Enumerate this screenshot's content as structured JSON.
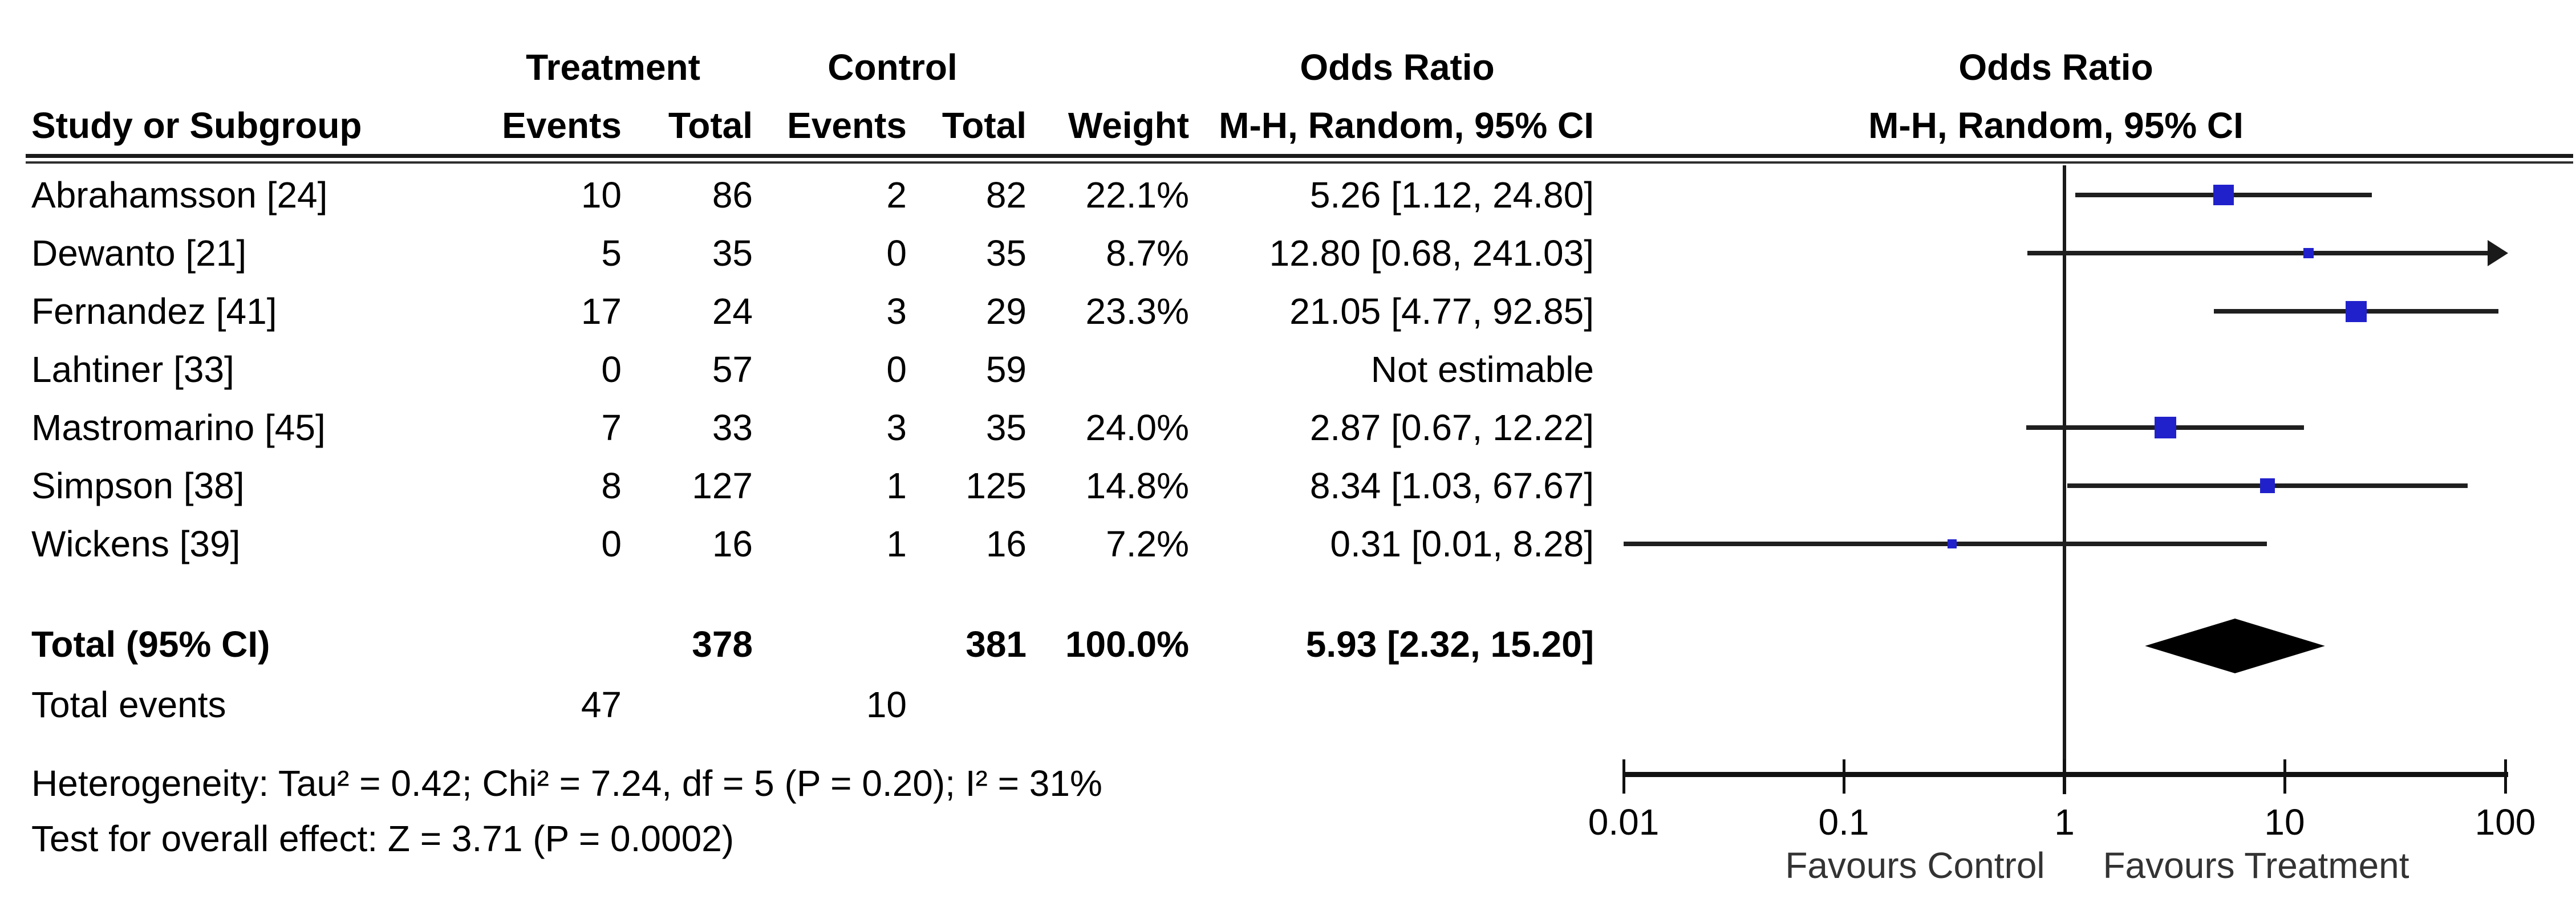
{
  "header": {
    "group1": "Treatment",
    "group2": "Control",
    "or_col_line1": "Odds Ratio",
    "or_col_line2": "M-H, Random, 95% CI",
    "plot_line1": "Odds Ratio",
    "plot_line2": "M-H, Random, 95% CI",
    "study": "Study or Subgroup",
    "events": "Events",
    "total": "Total",
    "weight": "Weight"
  },
  "table": {
    "rows": [
      {
        "study": "Abrahamsson [24]",
        "t_events": "10",
        "t_total": "86",
        "c_events": "2",
        "c_total": "82",
        "weight": "22.1%",
        "or_text": "5.26 [1.12, 24.80]"
      },
      {
        "study": "Dewanto [21]",
        "t_events": "5",
        "t_total": "35",
        "c_events": "0",
        "c_total": "35",
        "weight": "8.7%",
        "or_text": "12.80 [0.68, 241.03]"
      },
      {
        "study": "Fernandez [41]",
        "t_events": "17",
        "t_total": "24",
        "c_events": "3",
        "c_total": "29",
        "weight": "23.3%",
        "or_text": "21.05 [4.77, 92.85]"
      },
      {
        "study": "Lahtiner [33]",
        "t_events": "0",
        "t_total": "57",
        "c_events": "0",
        "c_total": "59",
        "weight": "",
        "or_text": "Not estimable"
      },
      {
        "study": "Mastromarino [45]",
        "t_events": "7",
        "t_total": "33",
        "c_events": "3",
        "c_total": "35",
        "weight": "24.0%",
        "or_text": "2.87 [0.67, 12.22]"
      },
      {
        "study": "Simpson [38]",
        "t_events": "8",
        "t_total": "127",
        "c_events": "1",
        "c_total": "125",
        "weight": "14.8%",
        "or_text": "8.34 [1.03, 67.67]"
      },
      {
        "study": "Wickens [39]",
        "t_events": "0",
        "t_total": "16",
        "c_events": "1",
        "c_total": "16",
        "weight": "7.2%",
        "or_text": "0.31 [0.01, 8.28]"
      }
    ],
    "total_row": {
      "label": "Total (95% CI)",
      "t_total": "378",
      "c_total": "381",
      "weight": "100.0%",
      "or_text": "5.93 [2.32, 15.20]"
    },
    "total_events": {
      "label": "Total events",
      "t_events": "47",
      "c_events": "10"
    },
    "heterogeneity": "Heterogeneity: Tau² = 0.42; Chi² = 7.24, df = 5 (P = 0.20); I² = 31%",
    "overall_effect": "Test for overall effect: Z = 3.71 (P = 0.0002)"
  },
  "axis": {
    "ticks": [
      "0.01",
      "0.1",
      "1",
      "10",
      "100"
    ],
    "favours_left": "Favours Control",
    "favours_right": "Favours Treatment"
  },
  "colors": {
    "marker_blue": "#2121cc",
    "line_black": "#1a1a1a",
    "diamond_black": "#000000"
  },
  "chart_data": {
    "type": "forest",
    "title": "Odds Ratio",
    "effect_model": "M-H, Random, 95% CI",
    "x_scale": "log10",
    "xlim": [
      0.01,
      100
    ],
    "x_ticks": [
      0.01,
      0.1,
      1,
      10,
      100
    ],
    "null_line": 1,
    "favours": [
      "Favours Control",
      "Favours Treatment"
    ],
    "rows": [
      {
        "study": "Abrahamsson [24]",
        "or": 5.26,
        "ci_low": 1.12,
        "ci_high": 24.8,
        "weight_pct": 22.1,
        "estimable": true
      },
      {
        "study": "Dewanto [21]",
        "or": 12.8,
        "ci_low": 0.68,
        "ci_high": 241.03,
        "weight_pct": 8.7,
        "estimable": true
      },
      {
        "study": "Fernandez [41]",
        "or": 21.05,
        "ci_low": 4.77,
        "ci_high": 92.85,
        "weight_pct": 23.3,
        "estimable": true
      },
      {
        "study": "Lahtiner [33]",
        "or": null,
        "ci_low": null,
        "ci_high": null,
        "weight_pct": null,
        "estimable": false
      },
      {
        "study": "Mastromarino [45]",
        "or": 2.87,
        "ci_low": 0.67,
        "ci_high": 12.22,
        "weight_pct": 24.0,
        "estimable": true
      },
      {
        "study": "Simpson [38]",
        "or": 8.34,
        "ci_low": 1.03,
        "ci_high": 67.67,
        "weight_pct": 14.8,
        "estimable": true
      },
      {
        "study": "Wickens [39]",
        "or": 0.31,
        "ci_low": 0.01,
        "ci_high": 8.28,
        "weight_pct": 7.2,
        "estimable": true
      }
    ],
    "total": {
      "label": "Total (95% CI)",
      "or": 5.93,
      "ci_low": 2.32,
      "ci_high": 15.2,
      "weight_pct": 100.0
    },
    "treatment_totals": {
      "events": 47,
      "total": 378
    },
    "control_totals": {
      "events": 10,
      "total": 381
    },
    "heterogeneity": {
      "tau2": 0.42,
      "chi2": 7.24,
      "df": 5,
      "p": 0.2,
      "i2_pct": 31
    },
    "overall_effect": {
      "z": 3.71,
      "p": 0.0002
    }
  }
}
